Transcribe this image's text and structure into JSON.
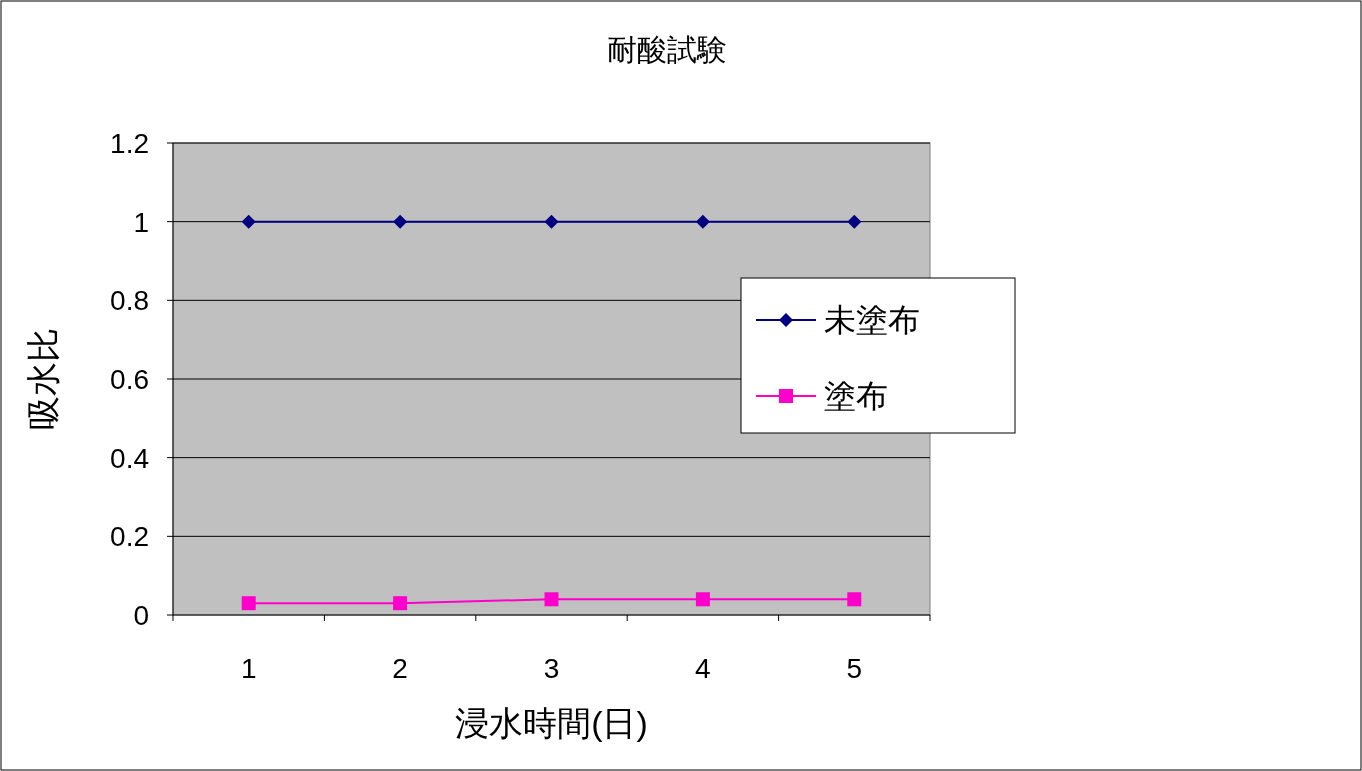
{
  "chart_data": {
    "type": "line",
    "title": "耐酸試験",
    "xlabel": "浸水時間(日)",
    "ylabel": "吸水比",
    "categories": [
      "1",
      "2",
      "3",
      "4",
      "5"
    ],
    "series": [
      {
        "name": "未塗布",
        "color": "#000080",
        "marker": "diamond",
        "values": [
          1,
          1,
          1,
          1,
          1
        ]
      },
      {
        "name": "塗布",
        "color": "#ff00cc",
        "marker": "square",
        "values": [
          0.03,
          0.03,
          0.04,
          0.04,
          0.04
        ]
      }
    ],
    "ylim": [
      0,
      1.2
    ],
    "yticks": [
      0,
      0.2,
      0.4,
      0.6,
      0.8,
      1,
      1.2
    ],
    "grid": "y",
    "legend": "right"
  }
}
